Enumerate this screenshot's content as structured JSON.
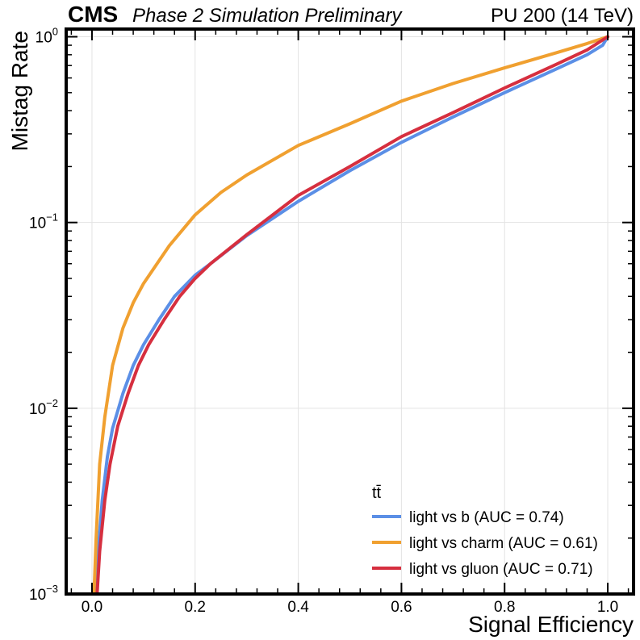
{
  "chart_data": {
    "type": "line",
    "header": {
      "experiment": "CMS",
      "status": "Phase 2 Simulation Preliminary",
      "conditions": "PU 200 (14 TeV)"
    },
    "xlabel": "Signal Efficiency",
    "ylabel": "Mistag Rate",
    "xlim": [
      -0.05,
      1.05
    ],
    "ylim": [
      0.001,
      1.1
    ],
    "yscale": "log",
    "grid": true,
    "x_ticks": [
      0.0,
      0.2,
      0.4,
      0.6,
      0.8,
      1.0
    ],
    "x_tick_labels": [
      "0.0",
      "0.2",
      "0.4",
      "0.6",
      "0.8",
      "1.0"
    ],
    "y_ticks": [
      0.001,
      0.01,
      0.1,
      1
    ],
    "y_tick_labels": [
      {
        "base": "10",
        "exp": "−3"
      },
      {
        "base": "10",
        "exp": "−2"
      },
      {
        "base": "10",
        "exp": "−1"
      },
      {
        "base": "10",
        "exp": "0"
      }
    ],
    "legend": {
      "title": "tt̄",
      "placement": "lower-right"
    },
    "series": [
      {
        "name": "light vs b (AUC = 0.74)",
        "color": "#5b8fe6",
        "x": [
          0.008,
          0.012,
          0.02,
          0.03,
          0.04,
          0.06,
          0.08,
          0.1,
          0.13,
          0.16,
          0.2,
          0.23,
          0.3,
          0.4,
          0.5,
          0.6,
          0.7,
          0.8,
          0.9,
          0.96,
          0.99,
          1.0
        ],
        "y": [
          0.001,
          0.0017,
          0.0032,
          0.0055,
          0.0078,
          0.012,
          0.017,
          0.022,
          0.03,
          0.04,
          0.052,
          0.06,
          0.085,
          0.13,
          0.19,
          0.27,
          0.37,
          0.5,
          0.67,
          0.8,
          0.9,
          1.0
        ]
      },
      {
        "name": "light vs charm (AUC = 0.61)",
        "color": "#f0a030",
        "x": [
          0.004,
          0.008,
          0.015,
          0.025,
          0.04,
          0.06,
          0.08,
          0.1,
          0.15,
          0.2,
          0.25,
          0.3,
          0.4,
          0.5,
          0.6,
          0.7,
          0.8,
          0.9,
          0.96,
          1.0
        ],
        "y": [
          0.001,
          0.002,
          0.005,
          0.009,
          0.017,
          0.027,
          0.037,
          0.047,
          0.075,
          0.11,
          0.145,
          0.18,
          0.26,
          0.34,
          0.45,
          0.56,
          0.68,
          0.82,
          0.92,
          1.0
        ]
      },
      {
        "name": "light vs gluon (AUC = 0.71)",
        "color": "#d62f3f",
        "x": [
          0.01,
          0.015,
          0.025,
          0.035,
          0.05,
          0.07,
          0.09,
          0.11,
          0.14,
          0.17,
          0.2,
          0.23,
          0.3,
          0.4,
          0.5,
          0.6,
          0.7,
          0.8,
          0.9,
          0.96,
          1.0
        ],
        "y": [
          0.001,
          0.0017,
          0.0032,
          0.005,
          0.008,
          0.012,
          0.017,
          0.022,
          0.03,
          0.04,
          0.05,
          0.06,
          0.086,
          0.14,
          0.2,
          0.29,
          0.39,
          0.53,
          0.71,
          0.85,
          1.0
        ]
      }
    ]
  }
}
